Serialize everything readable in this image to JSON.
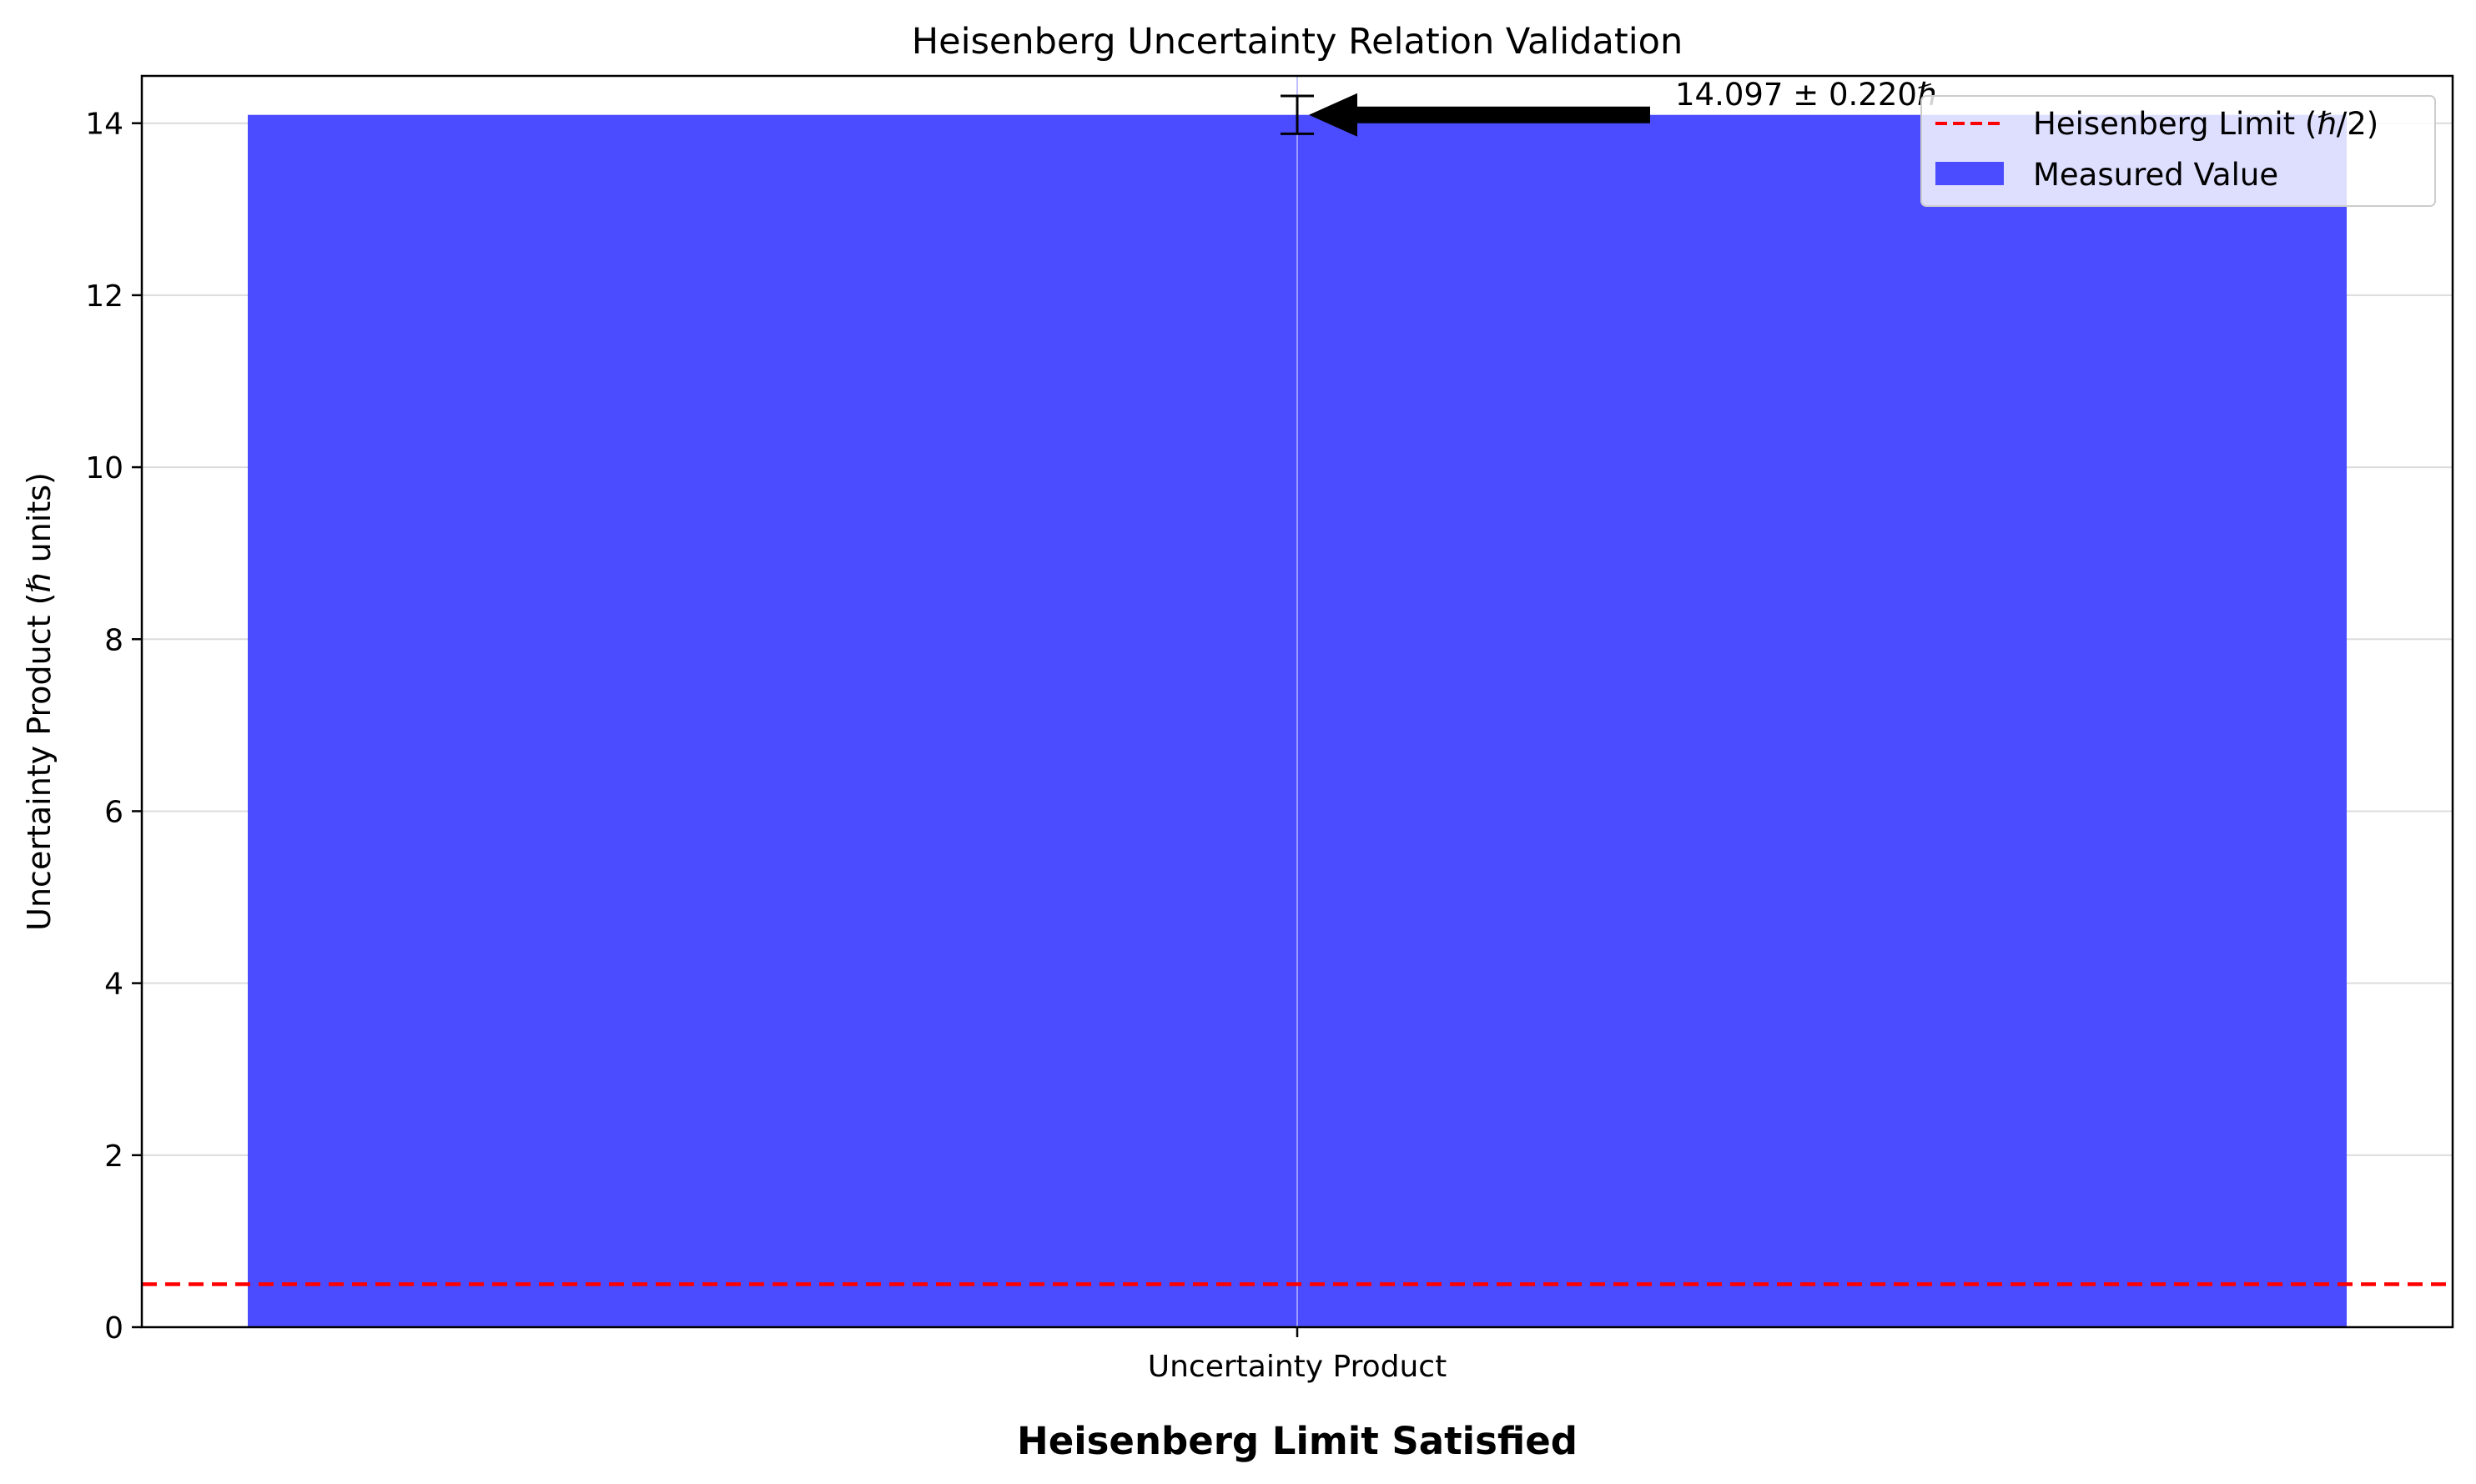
{
  "chart_data": {
    "type": "bar",
    "title": "Heisenberg Uncertainty Relation Validation",
    "xlabel": "",
    "ylabel": "Uncertainty Product (ℏ units)",
    "categories": [
      "Uncertainty Product"
    ],
    "series": [
      {
        "name": "Measured Value",
        "values": [
          14.097
        ],
        "error": [
          0.22
        ],
        "color": "#4b4bff"
      }
    ],
    "reference_lines": [
      {
        "name": "Heisenberg Limit (ℏ/2)",
        "y": 0.5,
        "color": "#ff0000",
        "style": "dashed"
      }
    ],
    "annotations": [
      {
        "text": "14.097 ± 0.220ℏ",
        "points_to": {
          "category": "Uncertainty Product",
          "y": 14.097
        },
        "arrow": true
      }
    ],
    "ylim": [
      0,
      14.55
    ],
    "yticks": [
      0,
      2,
      4,
      6,
      8,
      10,
      12,
      14
    ],
    "grid": true,
    "legend_position": "top-right",
    "status_text": "Heisenberg Limit Satisfied",
    "status_color": "#008000"
  }
}
